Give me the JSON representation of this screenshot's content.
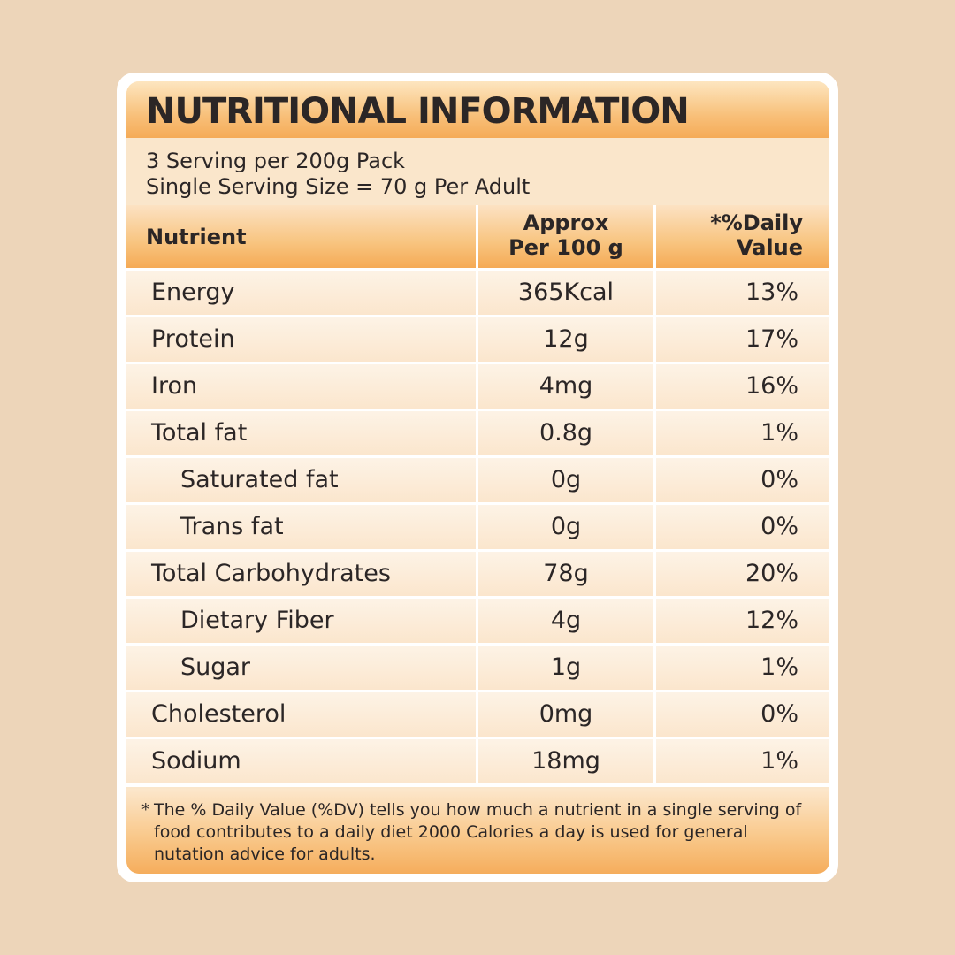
{
  "title": "NUTRITIONAL INFORMATION",
  "serving": {
    "line1": "3 Serving per 200g Pack",
    "line2": "Single Serving Size = 70 g Per Adult"
  },
  "table": {
    "headers": {
      "nutrient": "Nutrient",
      "approx_line1": "Approx",
      "approx_line2": "Per 100 g",
      "daily_line1": "*%Daily",
      "daily_line2": "Value"
    },
    "rows": [
      {
        "nutrient": "Energy",
        "approx": "365Kcal",
        "daily": "13%",
        "sub": false
      },
      {
        "nutrient": "Protein",
        "approx": "12g",
        "daily": "17%",
        "sub": false
      },
      {
        "nutrient": "Iron",
        "approx": "4mg",
        "daily": "16%",
        "sub": false
      },
      {
        "nutrient": "Total fat",
        "approx": "0.8g",
        "daily": "1%",
        "sub": false
      },
      {
        "nutrient": "Saturated fat",
        "approx": "0g",
        "daily": "0%",
        "sub": true
      },
      {
        "nutrient": "Trans fat",
        "approx": "0g",
        "daily": "0%",
        "sub": true
      },
      {
        "nutrient": "Total Carbohydrates",
        "approx": "78g",
        "daily": "20%",
        "sub": false
      },
      {
        "nutrient": "Dietary Fiber",
        "approx": "4g",
        "daily": "12%",
        "sub": true
      },
      {
        "nutrient": "Sugar",
        "approx": "1g",
        "daily": "1%",
        "sub": true
      },
      {
        "nutrient": "Cholesterol",
        "approx": "0mg",
        "daily": "0%",
        "sub": false
      },
      {
        "nutrient": "Sodium",
        "approx": "18mg",
        "daily": "1%",
        "sub": false
      }
    ]
  },
  "footnote": {
    "marker": "*",
    "text": "The % Daily Value (%DV) tells you how much a nutrient in a single serving of food contributes to a daily diet 2000 Calories a day is used for general nutation advice for adults."
  },
  "colors": {
    "background": "#edd5b9",
    "accent_orange": "#f5ab57",
    "text": "#2b2626"
  }
}
